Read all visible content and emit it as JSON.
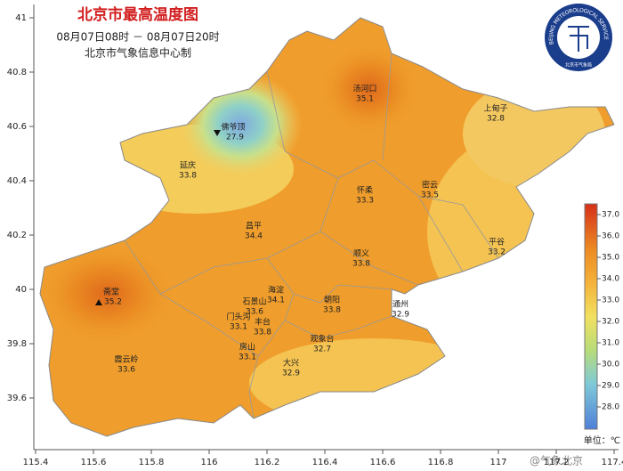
{
  "header": {
    "title": "北京市最高温度图",
    "time": "08月07日08时 － 08月07日20时",
    "org": "北京市气象信息中心制"
  },
  "logo": {
    "ring": "BEIJING METEOROLOGICAL SERVICE",
    "name": "北京市气象局"
  },
  "axes": {
    "xticks": [
      115.4,
      115.6,
      115.8,
      116,
      116.2,
      116.4,
      116.6,
      116.8,
      117,
      117.2,
      117.4
    ],
    "yticks": [
      39.6,
      39.8,
      40,
      40.2,
      40.4,
      40.6,
      40.8,
      41
    ]
  },
  "stations": [
    {
      "name": "汤河口",
      "value": 35.1
    },
    {
      "name": "上甸子",
      "value": 32.8
    },
    {
      "name": "佛爷顶",
      "value": 27.9
    },
    {
      "name": "延庆",
      "value": 33.8
    },
    {
      "name": "怀柔",
      "value": 33.3
    },
    {
      "name": "密云",
      "value": 33.5
    },
    {
      "name": "昌平",
      "value": 34.4
    },
    {
      "name": "平谷",
      "value": 33.2
    },
    {
      "name": "顺义",
      "value": 33.8
    },
    {
      "name": "斋堂",
      "value": 35.2
    },
    {
      "name": "海淀",
      "value": 34.1
    },
    {
      "name": "朝阳",
      "value": 33.8
    },
    {
      "name": "石景山",
      "value": 33.6
    },
    {
      "name": "门头沟",
      "value": 33.1
    },
    {
      "name": "丰台",
      "value": 33.8
    },
    {
      "name": "观象台",
      "value": 32.7
    },
    {
      "name": "通州",
      "value": 32.9
    },
    {
      "name": "霞云岭",
      "value": 33.6
    },
    {
      "name": "房山",
      "value": 33.1
    },
    {
      "name": "大兴",
      "value": 32.9
    }
  ],
  "colorbar": {
    "ticks": [
      {
        "value": 37,
        "label": "37.0"
      },
      {
        "value": 36,
        "label": "36.0"
      },
      {
        "value": 35,
        "label": "35.0"
      },
      {
        "value": 34,
        "label": "34.0"
      },
      {
        "value": 33,
        "label": "33.0"
      },
      {
        "value": 32,
        "label": "32.0"
      },
      {
        "value": 31,
        "label": "31.0"
      },
      {
        "value": 30,
        "label": "30.0"
      },
      {
        "value": 29,
        "label": "29.0"
      },
      {
        "value": 28,
        "label": "28.0"
      }
    ],
    "unit": "单位：℃"
  },
  "watermark": "@气象北京"
}
